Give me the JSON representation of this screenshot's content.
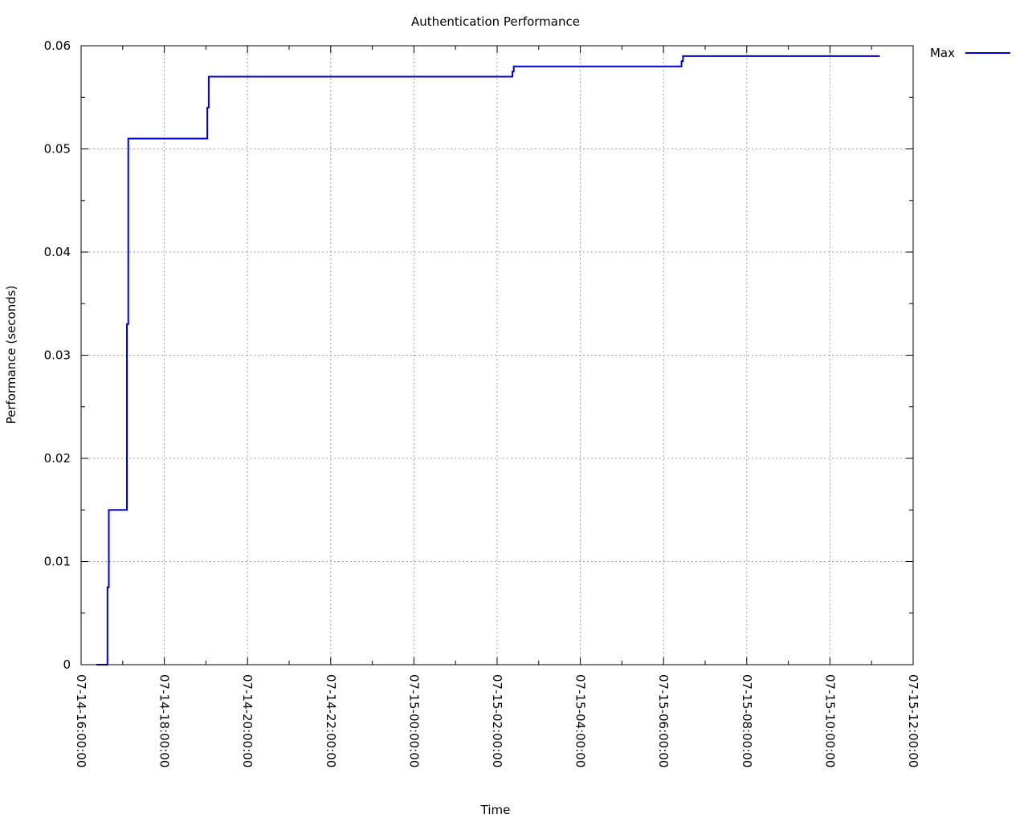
{
  "chart_data": {
    "type": "line",
    "step": true,
    "title": "Authentication Performance",
    "xlabel": "Time",
    "ylabel": "Performance (seconds)",
    "x_range": [
      "07-14-16:00:00",
      "07-15-12:00:00"
    ],
    "y_range": [
      0,
      0.06
    ],
    "x_ticks": [
      "07-14-16:00:00",
      "07-14-18:00:00",
      "07-14-20:00:00",
      "07-14-22:00:00",
      "07-15-00:00:00",
      "07-15-02:00:00",
      "07-15-04:00:00",
      "07-15-06:00:00",
      "07-15-08:00:00",
      "07-15-10:00:00",
      "07-15-12:00:00"
    ],
    "y_ticks": [
      "0",
      "0.01",
      "0.02",
      "0.03",
      "0.04",
      "0.05",
      "0.06"
    ],
    "grid": true,
    "legend_position": "top-right outside",
    "series": [
      {
        "name": "Max",
        "color": "#0000cc",
        "points": [
          {
            "x": "07-14-16:22",
            "y": 0
          },
          {
            "x": "07-14-16:38",
            "y": 0
          },
          {
            "x": "07-14-16:38",
            "y": 0.0075
          },
          {
            "x": "07-14-16:40",
            "y": 0.0075
          },
          {
            "x": "07-14-16:40",
            "y": 0.015
          },
          {
            "x": "07-14-17:06",
            "y": 0.015
          },
          {
            "x": "07-14-17:06",
            "y": 0.033
          },
          {
            "x": "07-14-17:08",
            "y": 0.033
          },
          {
            "x": "07-14-17:08",
            "y": 0.051
          },
          {
            "x": "07-14-19:02",
            "y": 0.051
          },
          {
            "x": "07-14-19:02",
            "y": 0.054
          },
          {
            "x": "07-14-19:04",
            "y": 0.054
          },
          {
            "x": "07-14-19:04",
            "y": 0.057
          },
          {
            "x": "07-15-02:22",
            "y": 0.057
          },
          {
            "x": "07-15-02:22",
            "y": 0.0575
          },
          {
            "x": "07-15-02:24",
            "y": 0.0575
          },
          {
            "x": "07-15-02:24",
            "y": 0.058
          },
          {
            "x": "07-15-06:26",
            "y": 0.058
          },
          {
            "x": "07-15-06:26",
            "y": 0.0585
          },
          {
            "x": "07-15-06:28",
            "y": 0.0585
          },
          {
            "x": "07-15-06:28",
            "y": 0.059
          },
          {
            "x": "07-15-11:12",
            "y": 0.059
          }
        ]
      }
    ]
  }
}
